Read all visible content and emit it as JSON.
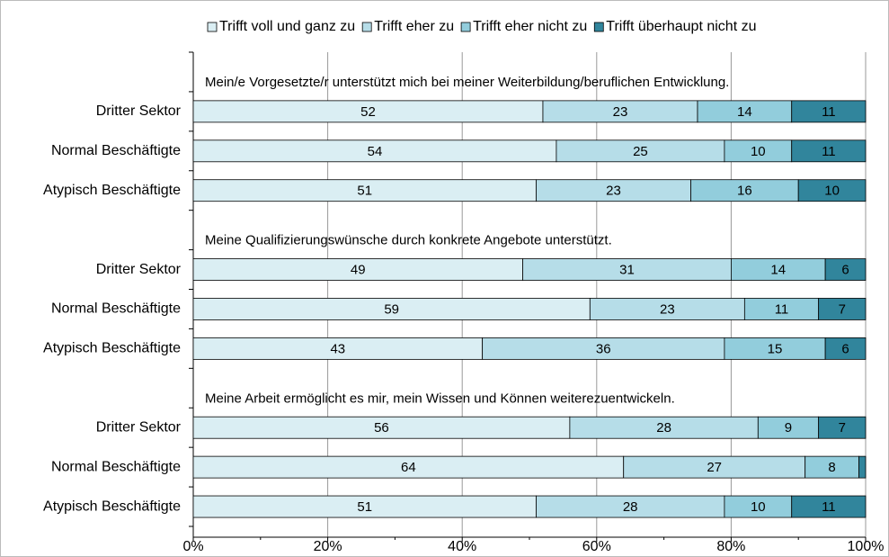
{
  "chart_data": {
    "type": "bar",
    "orientation": "horizontal",
    "stacked": true,
    "groups": [
      {
        "title": "Mein/e Vorgesetzte/r unterstützt mich bei meiner Weiterbildung/beruflichen Entwicklung."
      },
      {
        "title": "Meine Qualifizierungswünsche durch konkrete Angebote unterstützt."
      },
      {
        "title": "Meine Arbeit ermöglicht es mir, mein Wissen und Können weiterezuentwickeln."
      }
    ],
    "categories": [
      "Dritter Sektor",
      "Normal Beschäftigte",
      "Atypisch Beschäftigte",
      "Dritter Sektor",
      "Normal Beschäftigte",
      "Atypisch Beschäftigte",
      "Dritter Sektor",
      "Normal Beschäftigte",
      "Atypisch Beschäftigte"
    ],
    "series": [
      {
        "name": "Trifft voll und ganz zu",
        "color": "#daeef3",
        "values": [
          52,
          54,
          51,
          49,
          59,
          43,
          56,
          64,
          51
        ]
      },
      {
        "name": "Trifft eher zu",
        "color": "#b6dde8",
        "values": [
          23,
          25,
          23,
          31,
          23,
          36,
          28,
          27,
          28
        ]
      },
      {
        "name": "Trifft eher nicht zu",
        "color": "#92cddc",
        "values": [
          14,
          10,
          16,
          14,
          11,
          15,
          9,
          8,
          10
        ]
      },
      {
        "name": "Trifft überhaupt nicht zu",
        "color": "#31859c",
        "values": [
          11,
          11,
          10,
          6,
          7,
          6,
          7,
          1,
          11
        ]
      }
    ],
    "xlim": [
      0,
      100
    ],
    "xticks": [
      {
        "value": 0,
        "label": "0%"
      },
      {
        "value": 20,
        "label": "20%"
      },
      {
        "value": 40,
        "label": "40%"
      },
      {
        "value": 60,
        "label": "60%"
      },
      {
        "value": 80,
        "label": "80%"
      },
      {
        "value": 100,
        "label": "100%"
      }
    ],
    "grid": true,
    "legend": "top"
  }
}
